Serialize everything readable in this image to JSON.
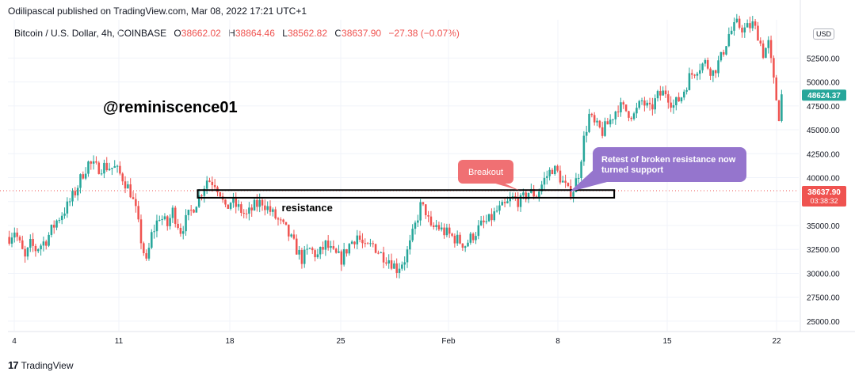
{
  "header": {
    "publisher": "Odilipascal published on TradingView.com, Mar 08, 2022 17:21 UTC+1",
    "symbol": "Bitcoin / U.S. Dollar, 4h, COINBASE",
    "ohlc": [
      {
        "key": "O",
        "value": "38662.02"
      },
      {
        "key": "H",
        "value": "38864.46"
      },
      {
        "key": "L",
        "value": "38562.82"
      },
      {
        "key": "C",
        "value": "38637.90"
      }
    ],
    "change": "−27.38 (−0.07%)"
  },
  "currency_badge": "USD",
  "handle_text": "@reminiscence01",
  "footer": {
    "brand": "TradingView",
    "logo": "17"
  },
  "colors": {
    "up": "#26a69a",
    "down": "#ef5350",
    "breakout": "#f07073",
    "retest": "#9575cd",
    "price_tag": "#ef5350",
    "last_tag": "#26a69a"
  },
  "chart_data": {
    "type": "candlestick",
    "x_tick_labels": [
      "4",
      "11",
      "18",
      "25",
      "Feb",
      "8",
      "15",
      "22"
    ],
    "y_ticks": [
      25000,
      27500,
      30000,
      32500,
      35000,
      37500,
      40000,
      42500,
      45000,
      47500,
      50000,
      52500
    ],
    "y_tick_labels": [
      "25000.00",
      "27500.00",
      "30000.00",
      "32500.00",
      "35000.00",
      "37500.00",
      "40000.00",
      "42500.00",
      "45000.00",
      "47500.00",
      "50000.00",
      "52500.00"
    ],
    "ylim": [
      24000,
      56500
    ],
    "current_price": {
      "value": 38637.9,
      "label": "38637.90",
      "countdown": "03:38:32"
    },
    "last_value_tag": {
      "value": 48624.37,
      "label": "48624.37"
    },
    "price_path": [
      [
        0,
        33800
      ],
      [
        2,
        34500
      ],
      [
        4,
        33000
      ],
      [
        6,
        31500
      ],
      [
        8,
        33000
      ],
      [
        10,
        32500
      ],
      [
        14,
        33500
      ],
      [
        18,
        35500
      ],
      [
        22,
        37000
      ],
      [
        25,
        38500
      ],
      [
        28,
        40500
      ],
      [
        30,
        41500
      ],
      [
        33,
        41000
      ],
      [
        36,
        41200
      ],
      [
        40,
        41000
      ],
      [
        43,
        40000
      ],
      [
        46,
        38500
      ],
      [
        48,
        36500
      ],
      [
        50,
        33500
      ],
      [
        52,
        31000
      ],
      [
        54,
        34000
      ],
      [
        57,
        36000
      ],
      [
        60,
        35000
      ],
      [
        62,
        36500
      ],
      [
        65,
        34500
      ],
      [
        68,
        36000
      ],
      [
        72,
        38000
      ],
      [
        75,
        39800
      ],
      [
        78,
        39500
      ],
      [
        80,
        38500
      ],
      [
        82,
        36500
      ],
      [
        84,
        37500
      ],
      [
        87,
        36800
      ],
      [
        90,
        36000
      ],
      [
        93,
        37000
      ],
      [
        96,
        37500
      ],
      [
        99,
        36500
      ],
      [
        102,
        35500
      ],
      [
        105,
        34500
      ],
      [
        108,
        33000
      ],
      [
        111,
        31500
      ],
      [
        114,
        32500
      ],
      [
        117,
        31800
      ],
      [
        120,
        33000
      ],
      [
        123,
        32000
      ],
      [
        126,
        31500
      ],
      [
        129,
        33000
      ],
      [
        132,
        34000
      ],
      [
        135,
        32500
      ],
      [
        138,
        33000
      ],
      [
        141,
        32000
      ],
      [
        144,
        31500
      ],
      [
        147,
        30500
      ],
      [
        150,
        31500
      ],
      [
        152,
        33000
      ],
      [
        154,
        35000
      ],
      [
        156,
        37000
      ],
      [
        158,
        36500
      ],
      [
        160,
        34500
      ],
      [
        162,
        35000
      ],
      [
        164,
        34500
      ],
      [
        167,
        34000
      ],
      [
        170,
        33500
      ],
      [
        173,
        33000
      ],
      [
        176,
        34000
      ],
      [
        179,
        35000
      ],
      [
        182,
        35500
      ],
      [
        185,
        36500
      ],
      [
        188,
        37000
      ],
      [
        191,
        37800
      ],
      [
        194,
        37500
      ],
      [
        197,
        38500
      ],
      [
        200,
        38200
      ],
      [
        203,
        39800
      ],
      [
        206,
        41000
      ],
      [
        208,
        40500
      ],
      [
        210,
        39500
      ],
      [
        212,
        38500
      ],
      [
        214,
        38800
      ],
      [
        216,
        40500
      ],
      [
        218,
        44000
      ],
      [
        220,
        46500
      ],
      [
        222,
        45500
      ],
      [
        225,
        44800
      ],
      [
        228,
        46000
      ],
      [
        231,
        47500
      ],
      [
        234,
        47000
      ],
      [
        237,
        46500
      ],
      [
        240,
        48000
      ],
      [
        243,
        47000
      ],
      [
        246,
        48500
      ],
      [
        249,
        49000
      ],
      [
        252,
        47500
      ],
      [
        255,
        48500
      ],
      [
        258,
        50500
      ],
      [
        261,
        51500
      ],
      [
        264,
        52000
      ],
      [
        267,
        51000
      ],
      [
        270,
        52500
      ],
      [
        273,
        55000
      ],
      [
        276,
        56000
      ],
      [
        279,
        55500
      ],
      [
        282,
        56000
      ],
      [
        284,
        55000
      ],
      [
        286,
        53000
      ],
      [
        288,
        54000
      ],
      [
        290,
        50000
      ],
      [
        292,
        46500
      ],
      [
        293,
        48600
      ]
    ],
    "annotations": [
      {
        "type": "box",
        "label": "resistance",
        "y_low": 37900,
        "y_high": 38700,
        "x_start": 72,
        "x_end": 230
      },
      {
        "type": "callout",
        "label": "Breakout",
        "color": "breakout",
        "target_x": 194,
        "target_y": 38500
      },
      {
        "type": "callout",
        "label": "Retest of broken resistance now turned support",
        "color": "retest",
        "target_x": 213,
        "target_y": 38500
      }
    ]
  }
}
